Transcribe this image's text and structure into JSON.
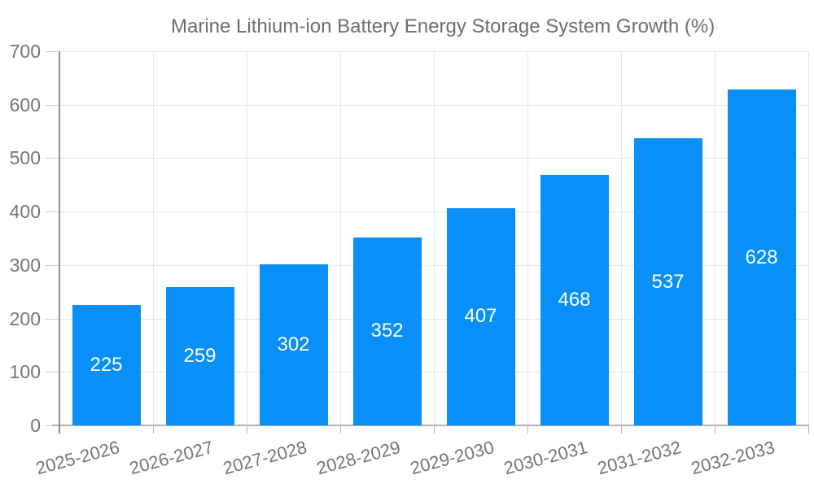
{
  "chart_data": {
    "type": "bar",
    "title": "Marine Lithium-ion Battery Energy Storage System Growth (%)",
    "categories": [
      "2025-2026",
      "2026-2027",
      "2027-2028",
      "2028-2029",
      "2029-2030",
      "2030-2031",
      "2031-2032",
      "2032-2033"
    ],
    "values": [
      225,
      259,
      302,
      352,
      407,
      468,
      537,
      628
    ],
    "value_labels": [
      "225",
      "259",
      "302",
      "352",
      "407",
      "468",
      "537",
      "628"
    ],
    "yticks": [
      "0",
      "100",
      "200",
      "300",
      "400",
      "500",
      "600",
      "700"
    ],
    "ylim": [
      0,
      700
    ],
    "xlabel": "",
    "ylabel": "",
    "grid": true,
    "legend_position": "top",
    "x_label_rotation_deg": -15,
    "colors": {
      "bar": "#0890f8",
      "value_label": "#ffffff",
      "axis_text": "#757575",
      "title_text": "#6e6e6e",
      "gridline": "#e6e6e6",
      "y_tick": "#cfcfcf",
      "y_axis_line": "#8f8f8f",
      "x_axis_line": "#b3b3b3",
      "x_tick": "#b3b3b3"
    }
  }
}
